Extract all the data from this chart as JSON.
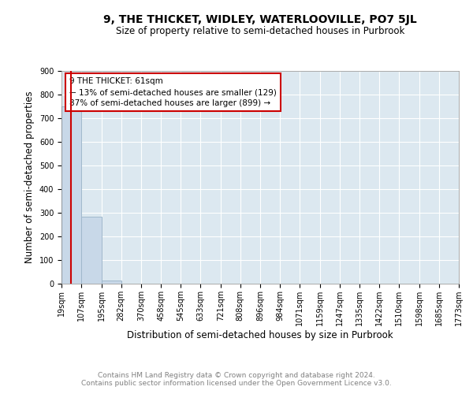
{
  "title": "9, THE THICKET, WIDLEY, WATERLOOVILLE, PO7 5JL",
  "subtitle": "Size of property relative to semi-detached houses in Purbrook",
  "xlabel": "Distribution of semi-detached houses by size in Purbrook",
  "ylabel": "Number of semi-detached properties",
  "bin_labels": [
    "19sqm",
    "107sqm",
    "195sqm",
    "282sqm",
    "370sqm",
    "458sqm",
    "545sqm",
    "633sqm",
    "721sqm",
    "808sqm",
    "896sqm",
    "984sqm",
    "1071sqm",
    "1159sqm",
    "1247sqm",
    "1335sqm",
    "1422sqm",
    "1510sqm",
    "1598sqm",
    "1685sqm",
    "1773sqm"
  ],
  "bin_edges": [
    19,
    107,
    195,
    282,
    370,
    458,
    545,
    633,
    721,
    808,
    896,
    984,
    1071,
    1159,
    1247,
    1335,
    1422,
    1510,
    1598,
    1685,
    1773
  ],
  "bar_heights": [
    750,
    285,
    13,
    0,
    0,
    0,
    0,
    0,
    0,
    0,
    0,
    0,
    0,
    0,
    0,
    0,
    0,
    0,
    0,
    0
  ],
  "bar_color": "#c8d8e8",
  "bar_edgecolor": "#a0b8cc",
  "property_size": 61,
  "property_label": "9 THE THICKET: 61sqm",
  "pct_smaller": 13,
  "n_smaller": 129,
  "pct_larger": 87,
  "n_larger": 899,
  "redline_color": "#cc0000",
  "annotation_box_edgecolor": "#cc0000",
  "ylim": [
    0,
    900
  ],
  "yticks": [
    0,
    100,
    200,
    300,
    400,
    500,
    600,
    700,
    800,
    900
  ],
  "footer1": "Contains HM Land Registry data © Crown copyright and database right 2024.",
  "footer2": "Contains public sector information licensed under the Open Government Licence v3.0.",
  "background_color": "#dce8f0",
  "title_fontsize": 10,
  "subtitle_fontsize": 8.5,
  "axis_label_fontsize": 8.5,
  "tick_fontsize": 7,
  "footer_fontsize": 6.5,
  "annotation_fontsize": 7.5
}
